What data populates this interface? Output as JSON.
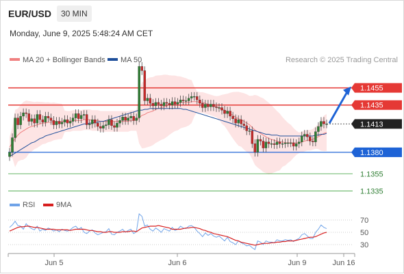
{
  "header": {
    "symbol": "EUR/USD",
    "timeframe": "30 MIN",
    "datetime": "Monday, June 9, 2025 5:48:24 AM CET"
  },
  "legend": {
    "ma20_label": "MA 20 + Bollinger Bands",
    "ma20_color": "#f08080",
    "ma50_label": "MA 50",
    "ma50_color": "#1e4e9a",
    "credit": "Research © 2025 Trading Central"
  },
  "colors": {
    "up": "#2e7d32",
    "down": "#c62828",
    "resistance": "#e53935",
    "pivot": "#1e63d6",
    "support": "#3aa03a",
    "price_tag": "#222222",
    "band_fill": "#fde4e4",
    "arrow": "#1e63d6"
  },
  "chart_data": {
    "type": "candlestick",
    "symbol": "EUR/USD",
    "timeframe": "30 MIN",
    "price_range": [
      1.1325,
      1.1465
    ],
    "x_tick_labels": [
      "Jun 5",
      "Jun 6",
      "Jun 9",
      "Jun 16"
    ],
    "levels": [
      {
        "label": "1.1455",
        "value": 1.1455,
        "kind": "resistance"
      },
      {
        "label": "1.1435",
        "value": 1.1435,
        "kind": "resistance"
      },
      {
        "label": "1.1413",
        "value": 1.1413,
        "kind": "last"
      },
      {
        "label": "1.1380",
        "value": 1.138,
        "kind": "pivot"
      },
      {
        "label": "1.1355",
        "value": 1.1355,
        "kind": "support"
      },
      {
        "label": "1.1335",
        "value": 1.1335,
        "kind": "support"
      }
    ],
    "projection": {
      "from": 1.1413,
      "to": 1.1455,
      "direction": "up"
    },
    "closes": [
      1.138,
      1.1397,
      1.142,
      1.1412,
      1.1422,
      1.1426,
      1.1425,
      1.1416,
      1.1419,
      1.1414,
      1.1424,
      1.1418,
      1.1415,
      1.1422,
      1.142,
      1.1417,
      1.1412,
      1.1416,
      1.1413,
      1.1415,
      1.1418,
      1.1414,
      1.1416,
      1.142,
      1.1425,
      1.1419,
      1.1423,
      1.1424,
      1.1412,
      1.1413,
      1.1418,
      1.1414,
      1.141,
      1.1408,
      1.1411,
      1.1412,
      1.1418,
      1.1411,
      1.1409,
      1.1414,
      1.1417,
      1.1421,
      1.1417,
      1.142,
      1.1422,
      1.1417,
      1.142,
      1.148,
      1.1475,
      1.144,
      1.1443,
      1.1437,
      1.1434,
      1.1438,
      1.1436,
      1.1434,
      1.1438,
      1.1437,
      1.1435,
      1.1439,
      1.1436,
      1.1438,
      1.1441,
      1.144,
      1.144,
      1.1443,
      1.1445,
      1.1445,
      1.1441,
      1.1437,
      1.1432,
      1.1436,
      1.1433,
      1.1436,
      1.1433,
      1.1432,
      1.1432,
      1.1429,
      1.1425,
      1.1428,
      1.1422,
      1.1419,
      1.1414,
      1.1418,
      1.1413,
      1.1411,
      1.1405,
      1.1405,
      1.139,
      1.138,
      1.1395,
      1.1393,
      1.1385,
      1.1392,
      1.139,
      1.139,
      1.1389,
      1.1392,
      1.139,
      1.139,
      1.1391,
      1.1391,
      1.1391,
      1.1387,
      1.139,
      1.1392,
      1.1399,
      1.1401,
      1.1398,
      1.1393,
      1.1392,
      1.1404,
      1.141,
      1.1416,
      1.1413,
      1.1413
    ],
    "ma20": [
      1.1386,
      1.1391,
      1.1396,
      1.14,
      1.1403,
      1.1405,
      1.1407,
      1.1409,
      1.141,
      1.1411,
      1.1412,
      1.1413,
      1.1414,
      1.1414,
      1.1415,
      1.1415,
      1.1416,
      1.1416,
      1.1416,
      1.1416,
      1.1416,
      1.1416,
      1.1416,
      1.1417,
      1.1417,
      1.1417,
      1.1417,
      1.1418,
      1.1418,
      1.1418,
      1.1417,
      1.1417,
      1.1417,
      1.1416,
      1.1416,
      1.1416,
      1.1416,
      1.1416,
      1.1416,
      1.1416,
      1.1416,
      1.1416,
      1.1416,
      1.1416,
      1.1417,
      1.1417,
      1.1417,
      1.142,
      1.1423,
      1.1424,
      1.1426,
      1.1427,
      1.1428,
      1.143,
      1.1431,
      1.1432,
      1.1433,
      1.1434,
      1.1435,
      1.1436,
      1.1437,
      1.1437,
      1.1438,
      1.1438,
      1.1438,
      1.1438,
      1.1439,
      1.1439,
      1.1439,
      1.1438,
      1.1438,
      1.1437,
      1.1436,
      1.1435,
      1.1434,
      1.1433,
      1.1432,
      1.143,
      1.1429,
      1.1427,
      1.1425,
      1.1423,
      1.1421,
      1.1419,
      1.1418,
      1.1416,
      1.1414,
      1.1412,
      1.1409,
      1.1406,
      1.1404,
      1.1402,
      1.14,
      1.1398,
      1.1396,
      1.1395,
      1.1394,
      1.1393,
      1.1392,
      1.1392,
      1.1391,
      1.1391,
      1.1391,
      1.1391,
      1.1391,
      1.1391,
      1.1392,
      1.1393,
      1.1394,
      1.1394,
      1.1395,
      1.1397,
      1.1398,
      1.14,
      1.1402,
      1.1403
    ],
    "ma50": [
      1.1375,
      1.1377,
      1.1379,
      1.1381,
      1.1383,
      1.1385,
      1.1387,
      1.1389,
      1.1391,
      1.1392,
      1.1394,
      1.1396,
      1.1397,
      1.1399,
      1.14,
      1.1401,
      1.1402,
      1.1403,
      1.1404,
      1.1405,
      1.1406,
      1.1407,
      1.1408,
      1.1409,
      1.141,
      1.1411,
      1.1412,
      1.1413,
      1.1413,
      1.1414,
      1.1414,
      1.1415,
      1.1415,
      1.1416,
      1.1416,
      1.1417,
      1.1418,
      1.1419,
      1.142,
      1.1421,
      1.1422,
      1.1423,
      1.1424,
      1.1425,
      1.1426,
      1.1427,
      1.1428,
      1.1429,
      1.1429,
      1.143,
      1.143,
      1.1431,
      1.1431,
      1.1431,
      1.1431,
      1.1431,
      1.1431,
      1.1431,
      1.1431,
      1.1431,
      1.1431,
      1.1431,
      1.1431,
      1.143,
      1.143,
      1.1429,
      1.1428,
      1.1427,
      1.1426,
      1.1425,
      1.1424,
      1.1423,
      1.1422,
      1.1421,
      1.142,
      1.1419,
      1.1418,
      1.1417,
      1.1416,
      1.1415,
      1.1414,
      1.1413,
      1.1412,
      1.1411,
      1.141,
      1.1409,
      1.1408,
      1.1407,
      1.1406,
      1.1405,
      1.1404,
      1.1403,
      1.1402,
      1.1401,
      1.1401,
      1.14,
      1.14,
      1.14,
      1.1399,
      1.1399,
      1.1399,
      1.1399,
      1.1399,
      1.1399,
      1.1399,
      1.1399,
      1.1399,
      1.1399,
      1.1399,
      1.1399,
      1.1399,
      1.14,
      1.14,
      1.1401,
      1.1401,
      1.1402
    ],
    "rsi": {
      "label": "RSI",
      "ma_label": "9MA",
      "rsi_color": "#6fa3e8",
      "ma_color": "#d71f1f",
      "range": [
        20,
        80
      ],
      "tick_labels": [
        "70",
        "50",
        "30"
      ],
      "tick_values": [
        70,
        50,
        30
      ],
      "values": [
        58,
        62,
        68,
        61,
        60,
        55,
        64,
        59,
        56,
        54,
        60,
        52,
        55,
        53,
        57,
        55,
        52,
        54,
        51,
        55,
        53,
        52,
        54,
        58,
        60,
        55,
        58,
        50,
        48,
        52,
        54,
        49,
        46,
        48,
        50,
        51,
        56,
        47,
        46,
        50,
        52,
        55,
        50,
        53,
        55,
        48,
        51,
        80,
        76,
        60,
        62,
        55,
        52,
        57,
        54,
        50,
        56,
        54,
        52,
        58,
        53,
        55,
        60,
        57,
        56,
        60,
        61,
        58,
        52,
        48,
        43,
        49,
        45,
        48,
        44,
        42,
        44,
        40,
        36,
        42,
        35,
        33,
        30,
        36,
        33,
        31,
        28,
        29,
        25,
        22,
        36,
        34,
        30,
        36,
        34,
        34,
        33,
        38,
        36,
        36,
        38,
        37,
        38,
        35,
        38,
        40,
        46,
        48,
        44,
        40,
        40,
        50,
        55,
        62,
        58,
        56
      ],
      "ma_values": [
        52,
        54,
        56,
        58,
        59,
        59,
        60,
        60,
        59,
        58,
        58,
        57,
        56,
        55,
        55,
        55,
        55,
        54,
        54,
        54,
        54,
        54,
        53,
        54,
        55,
        55,
        55,
        55,
        54,
        53,
        53,
        52,
        51,
        51,
        50,
        50,
        51,
        51,
        50,
        50,
        50,
        51,
        51,
        51,
        52,
        52,
        51,
        54,
        57,
        58,
        59,
        60,
        60,
        60,
        61,
        60,
        59,
        58,
        57,
        55,
        55,
        55,
        55,
        56,
        57,
        57,
        58,
        58,
        57,
        56,
        54,
        53,
        51,
        50,
        48,
        47,
        46,
        45,
        44,
        43,
        41,
        39,
        37,
        36,
        34,
        33,
        32,
        31,
        30,
        29,
        30,
        31,
        32,
        32,
        32,
        33,
        33,
        34,
        34,
        35,
        35,
        36,
        36,
        36,
        37,
        38,
        39,
        40,
        41,
        42,
        42,
        43,
        45,
        47,
        49,
        50
      ]
    }
  }
}
